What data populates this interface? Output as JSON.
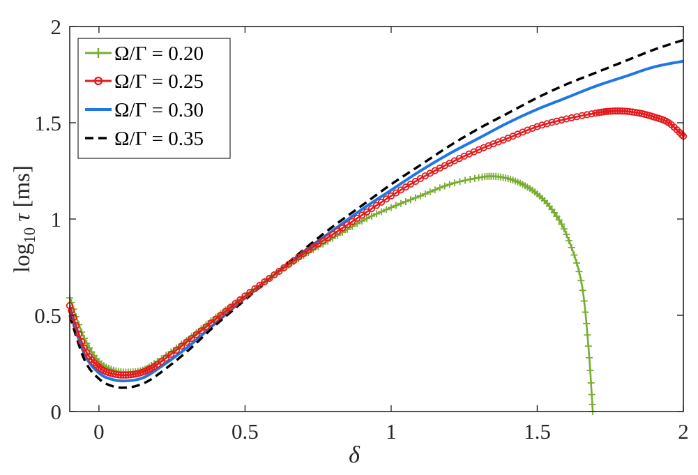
{
  "chart_data": {
    "type": "line",
    "xlabel": "δ",
    "ylabel": "log10 τ [ms]",
    "ylabel_parts": {
      "base": "log",
      "sub": "10",
      "var": " τ",
      "unit": " [ms]"
    },
    "xlim": [
      -0.1,
      2
    ],
    "ylim": [
      0,
      2
    ],
    "xticks": [
      0,
      0.5,
      1,
      1.5,
      2
    ],
    "xtick_labels": [
      "0",
      "0.5",
      "1",
      "1.5",
      "2"
    ],
    "yticks": [
      0,
      0.5,
      1,
      1.5,
      2
    ],
    "ytick_labels": [
      "0",
      "0.5",
      "1",
      "1.5",
      "2"
    ],
    "grid": false,
    "legend_position": "top-left",
    "series": [
      {
        "name": "Ω/Γ = 0.20",
        "color": "#77AC30",
        "marker": "plus",
        "dash": "solid",
        "x": [
          -0.1,
          -0.05,
          0.0,
          0.05,
          0.1,
          0.15,
          0.2,
          0.3,
          0.4,
          0.5,
          0.6,
          0.7,
          0.8,
          0.9,
          1.0,
          1.1,
          1.2,
          1.3,
          1.35,
          1.4,
          1.45,
          1.5,
          1.55,
          1.6,
          1.65,
          1.675,
          1.69
        ],
        "y": [
          0.59,
          0.38,
          0.26,
          0.215,
          0.205,
          0.215,
          0.26,
          0.37,
          0.49,
          0.6,
          0.71,
          0.81,
          0.9,
          0.99,
          1.06,
          1.12,
          1.18,
          1.215,
          1.222,
          1.21,
          1.18,
          1.13,
          1.05,
          0.92,
          0.68,
          0.34,
          0.0
        ]
      },
      {
        "name": "Ω/Γ = 0.25",
        "color": "#E31A1C",
        "marker": "circle",
        "dash": "solid",
        "x": [
          -0.1,
          -0.05,
          0.0,
          0.05,
          0.1,
          0.15,
          0.2,
          0.3,
          0.4,
          0.5,
          0.6,
          0.7,
          0.8,
          0.9,
          1.0,
          1.1,
          1.2,
          1.3,
          1.4,
          1.5,
          1.6,
          1.7,
          1.75,
          1.8,
          1.85,
          1.9,
          1.95,
          2.0
        ],
        "y": [
          0.55,
          0.33,
          0.23,
          0.195,
          0.19,
          0.205,
          0.245,
          0.36,
          0.48,
          0.6,
          0.71,
          0.82,
          0.92,
          1.02,
          1.12,
          1.21,
          1.29,
          1.36,
          1.42,
          1.48,
          1.52,
          1.55,
          1.56,
          1.56,
          1.55,
          1.53,
          1.5,
          1.43
        ]
      },
      {
        "name": "Ω/Γ = 0.30",
        "color": "#1F77E6",
        "marker": "none",
        "dash": "solid",
        "x": [
          -0.1,
          -0.05,
          0.0,
          0.05,
          0.1,
          0.15,
          0.2,
          0.3,
          0.4,
          0.5,
          0.6,
          0.7,
          0.8,
          0.9,
          1.0,
          1.1,
          1.2,
          1.3,
          1.4,
          1.5,
          1.6,
          1.7,
          1.8,
          1.9,
          2.0
        ],
        "y": [
          0.52,
          0.3,
          0.2,
          0.165,
          0.16,
          0.175,
          0.22,
          0.33,
          0.46,
          0.59,
          0.71,
          0.83,
          0.94,
          1.05,
          1.15,
          1.25,
          1.34,
          1.42,
          1.5,
          1.57,
          1.63,
          1.69,
          1.74,
          1.79,
          1.82
        ]
      },
      {
        "name": "Ω/Γ = 0.35",
        "color": "#000000",
        "marker": "none",
        "dash": "dashed",
        "x": [
          -0.1,
          -0.05,
          0.0,
          0.05,
          0.1,
          0.15,
          0.2,
          0.3,
          0.4,
          0.5,
          0.6,
          0.7,
          0.8,
          0.9,
          1.0,
          1.1,
          1.2,
          1.3,
          1.4,
          1.5,
          1.6,
          1.7,
          1.8,
          1.9,
          2.0
        ],
        "y": [
          0.5,
          0.27,
          0.17,
          0.13,
          0.125,
          0.145,
          0.19,
          0.31,
          0.45,
          0.58,
          0.71,
          0.84,
          0.96,
          1.07,
          1.18,
          1.28,
          1.38,
          1.47,
          1.55,
          1.63,
          1.7,
          1.76,
          1.82,
          1.88,
          1.93
        ]
      }
    ]
  }
}
